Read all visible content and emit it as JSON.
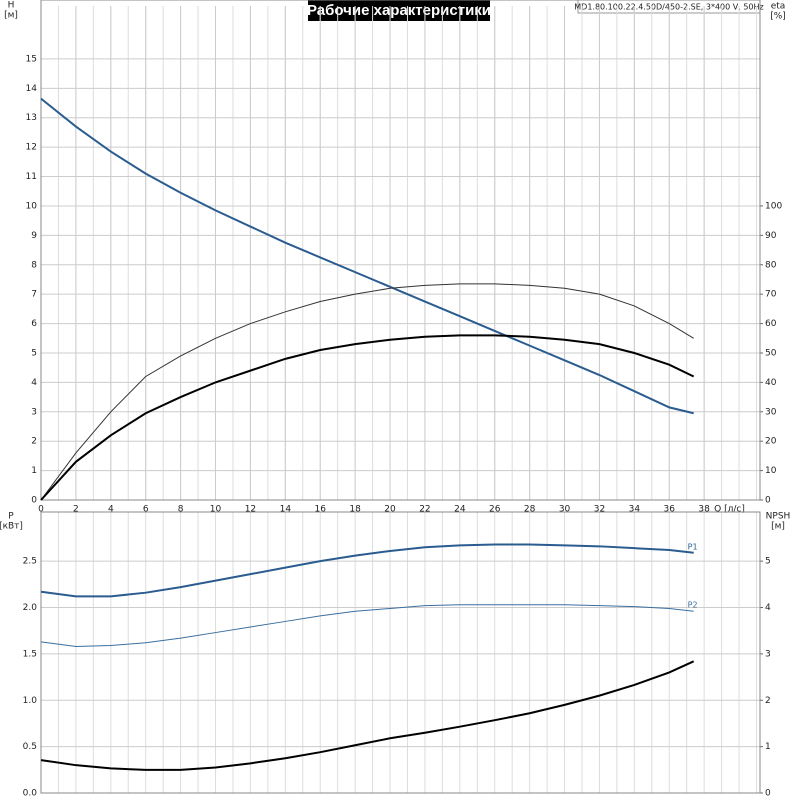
{
  "header": {
    "title": "Рабочие характеристики",
    "model": "MD1.80.100.22.4.50D/450-2.SE, 3*400 V, 50Hz"
  },
  "chart_data": [
    {
      "type": "line",
      "xlabel": "Q [л/с]",
      "ylabel": "H",
      "yunit": "[м]",
      "y2label": "eta",
      "y2unit": "[%]",
      "x": [
        0,
        2,
        4,
        6,
        8,
        10,
        12,
        14,
        16,
        18,
        20,
        22,
        24,
        26,
        28,
        30,
        32,
        34,
        36,
        37.4
      ],
      "xlim": [
        0,
        41.2
      ],
      "xticks": [
        0,
        2,
        4,
        6,
        8,
        10,
        12,
        14,
        16,
        18,
        20,
        22,
        24,
        26,
        28,
        30,
        32,
        34,
        36,
        38
      ],
      "ylim": [
        0,
        16.8
      ],
      "yticks": [
        0,
        1,
        2,
        3,
        4,
        5,
        6,
        7,
        8,
        9,
        10,
        11,
        12,
        13,
        14,
        15
      ],
      "y2lim": [
        0,
        168
      ],
      "y2ticks": [
        0,
        10,
        20,
        30,
        40,
        50,
        60,
        70,
        80,
        90,
        100
      ],
      "grid": true,
      "series": [
        {
          "color": "#2a5c8f",
          "line_width": 2,
          "axis": "y",
          "values": [
            13.65,
            12.7,
            11.85,
            11.1,
            10.45,
            9.85,
            9.3,
            8.75,
            8.25,
            7.75,
            7.25,
            6.75,
            6.25,
            5.75,
            5.25,
            4.75,
            4.25,
            3.7,
            3.15,
            2.95
          ]
        },
        {
          "color": "#333333",
          "line_width": 1,
          "axis": "y2",
          "values": [
            0,
            16,
            30,
            42,
            49,
            55,
            60,
            64,
            67.5,
            70,
            72,
            73,
            73.5,
            73.5,
            73,
            72,
            70,
            66,
            60,
            55
          ]
        },
        {
          "color": "#000000",
          "line_width": 2,
          "axis": "y2",
          "values": [
            0,
            13,
            22,
            29.5,
            35,
            40,
            44,
            48,
            51,
            53,
            54.5,
            55.5,
            56,
            56,
            55.5,
            54.5,
            53,
            50,
            46,
            42
          ]
        }
      ]
    },
    {
      "type": "line",
      "ylabel": "P",
      "yunit": "[кВт]",
      "y2label": "NPSH",
      "y2unit": "[м]",
      "x": [
        0,
        2,
        4,
        6,
        8,
        10,
        12,
        14,
        16,
        18,
        20,
        22,
        24,
        26,
        28,
        30,
        32,
        34,
        36,
        37.4
      ],
      "xlim": [
        0,
        41.2
      ],
      "ylim": [
        0,
        3.03
      ],
      "yticks": [
        {
          "value": 0,
          "label": "0.0"
        },
        0.5,
        {
          "value": 1,
          "label": "1.0"
        },
        1.5,
        {
          "value": 2,
          "label": "2.0"
        },
        2.5
      ],
      "y2lim": [
        0,
        6.06
      ],
      "y2ticks": [
        0,
        1,
        2,
        3,
        4,
        5
      ],
      "grid": true,
      "series": [
        {
          "name": "P1",
          "color": "#2a5c8f",
          "line_width": 2,
          "axis": "y",
          "values": [
            2.17,
            2.12,
            2.12,
            2.16,
            2.22,
            2.29,
            2.36,
            2.43,
            2.5,
            2.56,
            2.61,
            2.65,
            2.67,
            2.68,
            2.68,
            2.67,
            2.66,
            2.64,
            2.62,
            2.59
          ]
        },
        {
          "name": "P2",
          "color": "#3a6e9f",
          "line_width": 1,
          "axis": "y",
          "values": [
            1.63,
            1.58,
            1.59,
            1.62,
            1.67,
            1.73,
            1.79,
            1.85,
            1.91,
            1.96,
            1.99,
            2.02,
            2.03,
            2.03,
            2.03,
            2.03,
            2.02,
            2.01,
            1.99,
            1.96
          ]
        },
        {
          "color": "#000000",
          "line_width": 2,
          "axis": "y2",
          "values": [
            0.71,
            0.6,
            0.53,
            0.5,
            0.5,
            0.55,
            0.64,
            0.75,
            0.88,
            1.03,
            1.18,
            1.3,
            1.43,
            1.57,
            1.72,
            1.9,
            2.1,
            2.33,
            2.6,
            2.84
          ]
        }
      ]
    }
  ]
}
